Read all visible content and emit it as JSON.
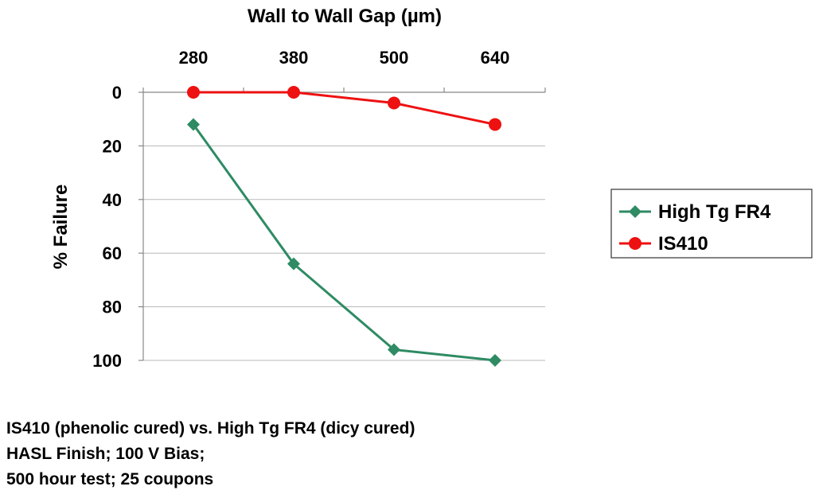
{
  "chart_data": {
    "type": "line",
    "title": "Wall to Wall Gap (µm)",
    "xlabel": "Wall to Wall Gap (µm)",
    "ylabel": "% Failure",
    "x_axis_position": "top",
    "y_inverted": true,
    "categories": [
      "280",
      "380",
      "500",
      "640"
    ],
    "ylim": [
      0,
      100
    ],
    "yticks": [
      0,
      20,
      40,
      60,
      80,
      100
    ],
    "grid": true,
    "legend_position": "right",
    "series": [
      {
        "name": "High Tg FR4",
        "values": [
          12,
          64,
          96,
          100
        ],
        "color": "#2e8b63",
        "marker": "diamond"
      },
      {
        "name": "IS410",
        "values": [
          0,
          0,
          4,
          12
        ],
        "color": "#ee1111",
        "marker": "circle"
      }
    ]
  },
  "notes": {
    "line1": "IS410 (phenolic cured) vs. High Tg FR4 (dicy cured)",
    "line2": "HASL Finish; 100 V Bias;",
    "line3": "500 hour test; 25 coupons"
  }
}
